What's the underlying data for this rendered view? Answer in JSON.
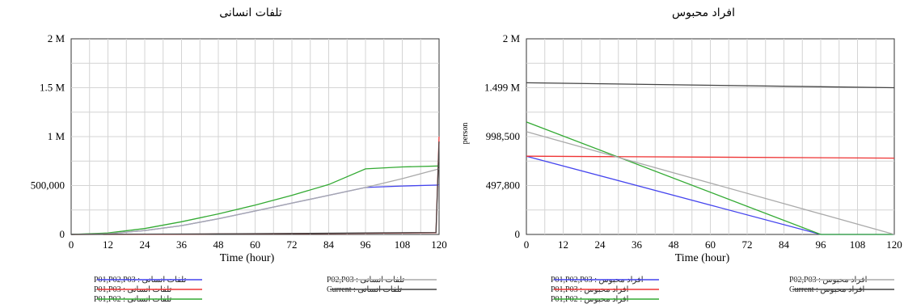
{
  "charts": [
    {
      "title": "تلفات انسانی",
      "xlabel": "Time (hour)",
      "ylabel": "",
      "yticks": [
        "0",
        "500,000",
        "1 M",
        "1.5 M",
        "2 M"
      ],
      "xticks": [
        "0",
        "12",
        "24",
        "36",
        "48",
        "60",
        "72",
        "84",
        "96",
        "108",
        "120"
      ],
      "legend": [
        {
          "label": "تلفات انسانی : P01,P02,P03",
          "color": "#4444ee"
        },
        {
          "label": "تلفات انسانی : P01,P03",
          "color": "#ee3333"
        },
        {
          "label": "تلفات انسانی : P01,P02",
          "color": "#33aa33"
        },
        {
          "label": "تلفات انسانی : P02,P03",
          "color": "#aaaaaa"
        },
        {
          "label": "تلفات انسانی : Current",
          "color": "#444444"
        }
      ]
    },
    {
      "title": "افراد محبوس",
      "xlabel": "Time (hour)",
      "ylabel": "person",
      "yticks": [
        "0",
        "497,800",
        "998,500",
        "1.499 M",
        "2 M"
      ],
      "xticks": [
        "0",
        "12",
        "24",
        "36",
        "48",
        "60",
        "72",
        "84",
        "96",
        "108",
        "120"
      ],
      "legend": [
        {
          "label": "افراد محبوس : P01,P02,P03",
          "color": "#4444ee"
        },
        {
          "label": "افراد محبوس : P01,P03",
          "color": "#ee3333"
        },
        {
          "label": "افراد محبوس : P01,P02",
          "color": "#33aa33"
        },
        {
          "label": "افراد محبوس : P02,P03",
          "color": "#aaaaaa"
        },
        {
          "label": "افراد محبوس : Current",
          "color": "#444444"
        }
      ]
    }
  ],
  "chart_data": [
    {
      "type": "line",
      "title": "تلفات انسانی",
      "xlabel": "Time (hour)",
      "ylabel": "",
      "xlim": [
        0,
        120
      ],
      "ylim": [
        0,
        2000000
      ],
      "grid": true,
      "legend_position": "bottom",
      "series": [
        {
          "name": "تلفات انسانی : P01,P02,P03",
          "color": "#4444ee",
          "x": [
            0,
            12,
            24,
            36,
            48,
            60,
            72,
            84,
            96,
            108,
            120
          ],
          "y": [
            0,
            8000,
            40000,
            90000,
            160000,
            240000,
            320000,
            400000,
            480000,
            495000,
            505000
          ]
        },
        {
          "name": "تلفات انسانی : P01,P03",
          "color": "#ee3333",
          "x": [
            0,
            24,
            48,
            72,
            96,
            119,
            120
          ],
          "y": [
            0,
            2000,
            5000,
            8000,
            12000,
            18000,
            1000000
          ]
        },
        {
          "name": "تلفات انسانی : P01,P02",
          "color": "#33aa33",
          "x": [
            0,
            12,
            24,
            36,
            48,
            60,
            72,
            84,
            96,
            108,
            120
          ],
          "y": [
            0,
            15000,
            60000,
            130000,
            210000,
            300000,
            400000,
            510000,
            670000,
            690000,
            700000
          ]
        },
        {
          "name": "تلفات انسانی : P02,P03",
          "color": "#aaaaaa",
          "x": [
            0,
            12,
            24,
            36,
            48,
            60,
            72,
            84,
            96,
            108,
            120
          ],
          "y": [
            0,
            8000,
            40000,
            90000,
            160000,
            240000,
            320000,
            400000,
            480000,
            570000,
            670000
          ]
        },
        {
          "name": "تلفات انسانی : Current",
          "color": "#444444",
          "x": [
            0,
            24,
            48,
            72,
            96,
            119,
            120
          ],
          "y": [
            0,
            3000,
            6000,
            10000,
            15000,
            20000,
            950000
          ]
        }
      ]
    },
    {
      "type": "line",
      "title": "افراد محبوس",
      "xlabel": "Time (hour)",
      "ylabel": "person",
      "xlim": [
        0,
        120
      ],
      "ylim": [
        0,
        2000000
      ],
      "grid": true,
      "legend_position": "bottom",
      "series": [
        {
          "name": "افراد محبوس : P01,P02,P03",
          "color": "#4444ee",
          "x": [
            0,
            96,
            120
          ],
          "y": [
            800000,
            0,
            0
          ]
        },
        {
          "name": "افراد محبوس : P01,P03",
          "color": "#ee3333",
          "x": [
            0,
            120
          ],
          "y": [
            800000,
            780000
          ]
        },
        {
          "name": "افراد محبوس : P01,P02",
          "color": "#33aa33",
          "x": [
            0,
            96,
            120
          ],
          "y": [
            1150000,
            0,
            0
          ]
        },
        {
          "name": "افراد محبوس : P02,P03",
          "color": "#aaaaaa",
          "x": [
            0,
            120
          ],
          "y": [
            1050000,
            0
          ]
        },
        {
          "name": "افراد محبوس : Current",
          "color": "#444444",
          "x": [
            0,
            120
          ],
          "y": [
            1550000,
            1500000
          ]
        }
      ]
    }
  ]
}
